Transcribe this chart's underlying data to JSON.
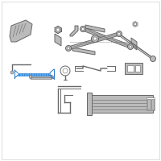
{
  "bg_color": "#ffffff",
  "border_color": "#d0d0d0",
  "part_color": "#999999",
  "part_color_dark": "#666666",
  "part_color_light": "#bbbbbb",
  "part_color_mid": "#888888",
  "highlight_color": "#2277cc",
  "highlight_color2": "#55aaee",
  "fig_width": 2.0,
  "fig_height": 2.0,
  "dpi": 100
}
